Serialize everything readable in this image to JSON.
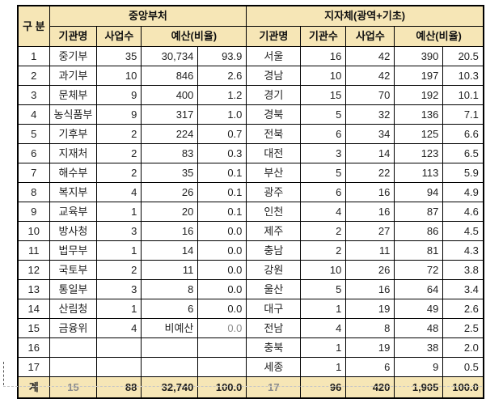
{
  "table": {
    "corner_header": "구 분",
    "total_label": "계",
    "sections": [
      {
        "title": "중앙부처",
        "columns": [
          "기관명",
          "사업수",
          "예산(비율)"
        ]
      },
      {
        "title": "지자체(광역+기초)",
        "columns": [
          "기관명",
          "기관수",
          "사업수",
          "예산(비율)"
        ]
      }
    ],
    "colors": {
      "header_bg": "#F6E6B6",
      "grid": "#000000",
      "text": "#1F1F1F",
      "muted_text": "#8C8C8C"
    },
    "rows": [
      {
        "no": "1",
        "left": {
          "name": "중기부",
          "projects": "35",
          "budget": "30,734",
          "ratio": "93.9"
        },
        "right": {
          "name": "서울",
          "orgs": "16",
          "projects": "42",
          "budget": "390",
          "ratio": "20.5"
        },
        "muted": []
      },
      {
        "no": "2",
        "left": {
          "name": "과기부",
          "projects": "10",
          "budget": "846",
          "ratio": "2.6"
        },
        "right": {
          "name": "경남",
          "orgs": "10",
          "projects": "42",
          "budget": "197",
          "ratio": "10.3"
        },
        "muted": []
      },
      {
        "no": "3",
        "left": {
          "name": "문체부",
          "projects": "9",
          "budget": "400",
          "ratio": "1.2"
        },
        "right": {
          "name": "경기",
          "orgs": "15",
          "projects": "70",
          "budget": "192",
          "ratio": "10.1"
        },
        "muted": []
      },
      {
        "no": "4",
        "left": {
          "name": "농식품부",
          "projects": "9",
          "budget": "317",
          "ratio": "1.0"
        },
        "right": {
          "name": "경북",
          "orgs": "5",
          "projects": "32",
          "budget": "136",
          "ratio": "7.1"
        },
        "muted": []
      },
      {
        "no": "5",
        "left": {
          "name": "기후부",
          "projects": "2",
          "budget": "224",
          "ratio": "0.7"
        },
        "right": {
          "name": "전북",
          "orgs": "6",
          "projects": "34",
          "budget": "125",
          "ratio": "6.6"
        },
        "muted": []
      },
      {
        "no": "6",
        "left": {
          "name": "지재처",
          "projects": "2",
          "budget": "83",
          "ratio": "0.3"
        },
        "right": {
          "name": "대전",
          "orgs": "3",
          "projects": "14",
          "budget": "123",
          "ratio": "6.5"
        },
        "muted": []
      },
      {
        "no": "7",
        "left": {
          "name": "해수부",
          "projects": "2",
          "budget": "35",
          "ratio": "0.1"
        },
        "right": {
          "name": "부산",
          "orgs": "5",
          "projects": "22",
          "budget": "113",
          "ratio": "5.9"
        },
        "muted": []
      },
      {
        "no": "8",
        "left": {
          "name": "복지부",
          "projects": "4",
          "budget": "26",
          "ratio": "0.1"
        },
        "right": {
          "name": "광주",
          "orgs": "6",
          "projects": "16",
          "budget": "94",
          "ratio": "4.9"
        },
        "muted": []
      },
      {
        "no": "9",
        "left": {
          "name": "교육부",
          "projects": "1",
          "budget": "20",
          "ratio": "0.1"
        },
        "right": {
          "name": "인천",
          "orgs": "4",
          "projects": "16",
          "budget": "87",
          "ratio": "4.6"
        },
        "muted": []
      },
      {
        "no": "10",
        "left": {
          "name": "방사청",
          "projects": "3",
          "budget": "16",
          "ratio": "0.0"
        },
        "right": {
          "name": "제주",
          "orgs": "2",
          "projects": "27",
          "budget": "86",
          "ratio": "4.5"
        },
        "muted": []
      },
      {
        "no": "11",
        "left": {
          "name": "법무부",
          "projects": "1",
          "budget": "14",
          "ratio": "0.0"
        },
        "right": {
          "name": "충남",
          "orgs": "2",
          "projects": "11",
          "budget": "81",
          "ratio": "4.3"
        },
        "muted": []
      },
      {
        "no": "12",
        "left": {
          "name": "국토부",
          "projects": "2",
          "budget": "11",
          "ratio": "0.0"
        },
        "right": {
          "name": "강원",
          "orgs": "10",
          "projects": "26",
          "budget": "72",
          "ratio": "3.8"
        },
        "muted": []
      },
      {
        "no": "13",
        "left": {
          "name": "통일부",
          "projects": "3",
          "budget": "8",
          "ratio": "0.0"
        },
        "right": {
          "name": "울산",
          "orgs": "5",
          "projects": "16",
          "budget": "64",
          "ratio": "3.4"
        },
        "muted": []
      },
      {
        "no": "14",
        "left": {
          "name": "산림청",
          "projects": "1",
          "budget": "6",
          "ratio": "0.0"
        },
        "right": {
          "name": "대구",
          "orgs": "1",
          "projects": "19",
          "budget": "49",
          "ratio": "2.6"
        },
        "muted": []
      },
      {
        "no": "15",
        "left": {
          "name": "금융위",
          "projects": "4",
          "budget": "비예산",
          "ratio": "0.0"
        },
        "right": {
          "name": "전남",
          "orgs": "4",
          "projects": "8",
          "budget": "48",
          "ratio": "2.5"
        },
        "muted": [
          "left.ratio"
        ]
      },
      {
        "no": "16",
        "left": {
          "name": "",
          "projects": "",
          "budget": "",
          "ratio": ""
        },
        "right": {
          "name": "충북",
          "orgs": "1",
          "projects": "19",
          "budget": "38",
          "ratio": "2.0"
        },
        "muted": []
      },
      {
        "no": "17",
        "left": {
          "name": "",
          "projects": "",
          "budget": "",
          "ratio": ""
        },
        "right": {
          "name": "세종",
          "orgs": "1",
          "projects": "6",
          "budget": "9",
          "ratio": "0.5"
        },
        "muted": []
      }
    ],
    "total_row": {
      "no": "계",
      "left": {
        "name": "15",
        "projects": "88",
        "budget": "32,740",
        "ratio": "100.0"
      },
      "right": {
        "name": "17",
        "orgs": "96",
        "projects": "420",
        "budget": "1,905",
        "ratio": "100.0"
      },
      "muted": [
        "left.name",
        "right.name"
      ]
    }
  }
}
